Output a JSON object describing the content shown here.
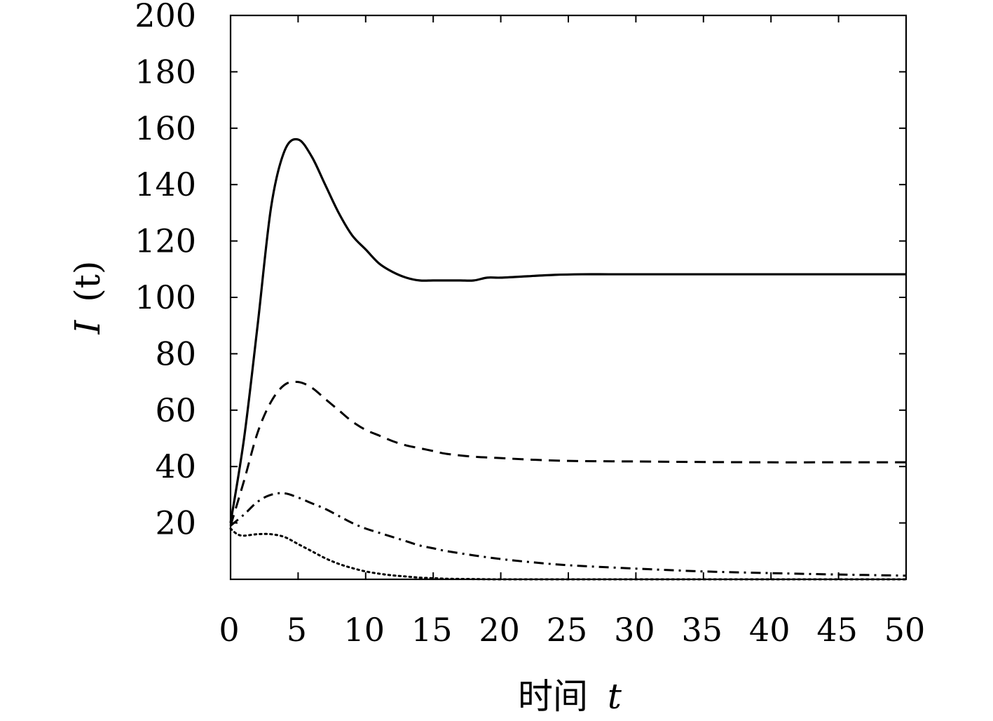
{
  "chart_data": {
    "type": "line",
    "title": "",
    "xlabel_prefix": "时间",
    "xlabel_var": "t",
    "ylabel_var": "I",
    "ylabel_rest": "(t)",
    "xlim": [
      0,
      50
    ],
    "ylim": [
      0,
      200
    ],
    "x_ticks": [
      0,
      5,
      10,
      15,
      20,
      25,
      30,
      35,
      40,
      45,
      50
    ],
    "x_tick_labels": [
      "0",
      "5",
      "10",
      "15",
      "20",
      "25",
      "30",
      "35",
      "40",
      "45",
      "50"
    ],
    "y_ticks": [
      20,
      40,
      60,
      80,
      100,
      120,
      140,
      160,
      180,
      200
    ],
    "y_tick_labels": [
      "20",
      "40",
      "60",
      "80",
      "100",
      "120",
      "140",
      "160",
      "180",
      "200"
    ],
    "grid": false,
    "legend": "none",
    "line_color": "#000000",
    "series": [
      {
        "style": "solid",
        "x": [
          0,
          1,
          2,
          3,
          4,
          5,
          6,
          7,
          8,
          9,
          10,
          11,
          12,
          13,
          14,
          15,
          16,
          17,
          18,
          19,
          20,
          22,
          24,
          26,
          28,
          30,
          35,
          40,
          45,
          50
        ],
        "y": [
          20,
          50,
          90,
          132,
          152,
          156,
          150,
          140,
          130,
          122,
          117,
          112,
          109,
          107,
          106,
          106,
          106,
          106,
          106,
          107,
          107,
          107.5,
          108,
          108.2,
          108.2,
          108.2,
          108.2,
          108.2,
          108.2,
          108.2
        ]
      },
      {
        "style": "dashed",
        "x": [
          0,
          1,
          2,
          3,
          4,
          5,
          6,
          7,
          8,
          9,
          10,
          11,
          12,
          13,
          14,
          15,
          16,
          18,
          20,
          22,
          25,
          30,
          35,
          40,
          45,
          50
        ],
        "y": [
          19,
          35,
          52,
          63,
          69,
          70,
          68,
          64,
          60,
          56,
          53,
          51,
          49,
          47.5,
          46.5,
          45.5,
          44.5,
          43.5,
          43,
          42.5,
          42,
          41.8,
          41.6,
          41.5,
          41.5,
          41.5
        ]
      },
      {
        "style": "dashdot",
        "x": [
          0,
          1,
          2,
          3,
          4,
          5,
          6,
          7,
          8,
          9,
          10,
          11,
          12,
          13,
          14,
          15,
          16,
          18,
          20,
          22,
          25,
          30,
          35,
          40,
          45,
          50
        ],
        "y": [
          19,
          23,
          27.5,
          30,
          30.5,
          29,
          27,
          25,
          22.5,
          20,
          18,
          16.5,
          15,
          13.5,
          12,
          11,
          10,
          8.5,
          7.2,
          6.2,
          5,
          3.8,
          2.8,
          2.2,
          1.7,
          1.3
        ]
      },
      {
        "style": "dotted",
        "x": [
          0,
          0.5,
          1,
          2,
          3,
          4,
          5,
          6,
          7,
          8,
          9,
          10,
          11,
          12,
          13,
          14,
          15,
          16,
          18,
          20,
          25,
          30,
          35,
          40,
          45,
          50
        ],
        "y": [
          18,
          16,
          15.5,
          16,
          16,
          15,
          12.5,
          10,
          7.5,
          5.5,
          4,
          2.8,
          2,
          1.4,
          1,
          0.6,
          0.4,
          0.2,
          0.1,
          0,
          0,
          0,
          0,
          0,
          0,
          0
        ]
      }
    ]
  }
}
